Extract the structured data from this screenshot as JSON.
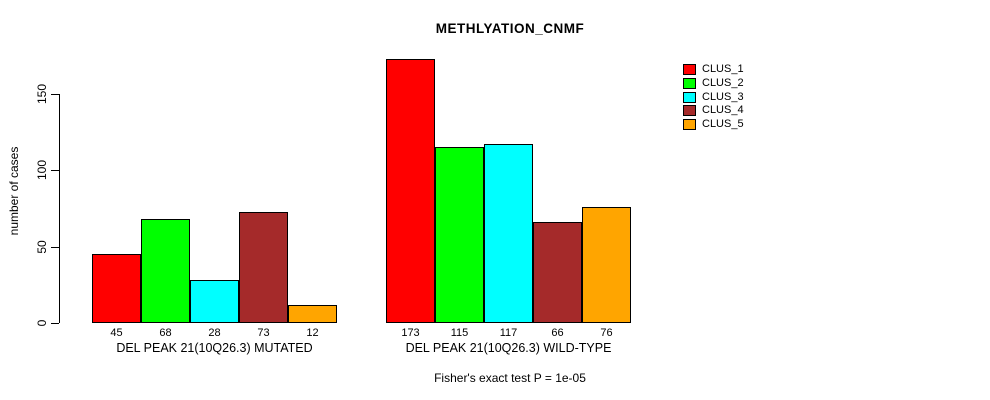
{
  "title": "METHLYATION_CNMF",
  "ylabel": "number of cases",
  "footnote": "Fisher's exact test P = 1e-05",
  "legend": [
    {
      "label": "CLUS_1",
      "color": "#FF0000"
    },
    {
      "label": "CLUS_2",
      "color": "#00FF00"
    },
    {
      "label": "CLUS_3",
      "color": "#00FFFF"
    },
    {
      "label": "CLUS_4",
      "color": "#A52A2A"
    },
    {
      "label": "CLUS_5",
      "color": "#FFA500"
    }
  ],
  "chart_data": {
    "type": "bar",
    "title": "METHLYATION_CNMF",
    "ylabel": "number of cases",
    "xlabel": "",
    "ylim": [
      0,
      175
    ],
    "yticks": [
      0,
      50,
      100,
      150
    ],
    "grid": false,
    "legend_position": "right",
    "series_names": [
      "CLUS_1",
      "CLUS_2",
      "CLUS_3",
      "CLUS_4",
      "CLUS_5"
    ],
    "series_colors": [
      "#FF0000",
      "#00FF00",
      "#00FFFF",
      "#A52A2A",
      "#FFA500"
    ],
    "groups": [
      {
        "label": "DEL PEAK 21(10Q26.3) MUTATED",
        "values": [
          45,
          68,
          28,
          73,
          12
        ]
      },
      {
        "label": "DEL PEAK 21(10Q26.3) WILD-TYPE",
        "values": [
          173,
          115,
          117,
          66,
          76
        ]
      }
    ],
    "annotation": "Fisher's exact test P = 1e-05"
  }
}
